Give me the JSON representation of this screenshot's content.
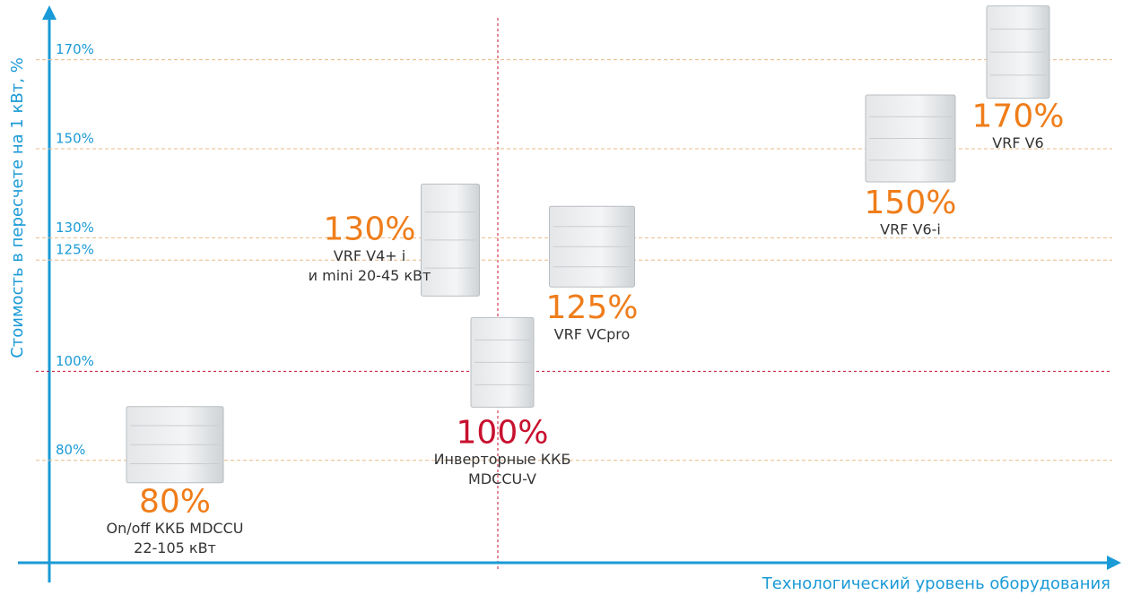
{
  "chart_data": {
    "type": "scatter",
    "y_label": "Стоимость в пересчете на 1 кВт, %",
    "x_label": "Технологический уровень оборудования",
    "ylim": [
      57,
      181
    ],
    "yticks": [
      {
        "value": 80,
        "label": "80%"
      },
      {
        "value": 100,
        "label": "100%"
      },
      {
        "value": 125,
        "label": "125%"
      },
      {
        "value": 130,
        "label": "130%"
      },
      {
        "value": 150,
        "label": "150%"
      },
      {
        "value": 170,
        "label": "170%"
      }
    ],
    "grid": true,
    "grid_color": "#e9b985",
    "reference_line": {
      "value": 100,
      "color": "#c8102e"
    },
    "categories": [
      [
        "On/off ККБ MDCCU",
        "22-105 кВт"
      ],
      [
        "Инверторные ККБ",
        "MDCCU-V"
      ],
      [
        "VRF VCpro"
      ],
      [
        "VRF V4+ i",
        "и mini 20-45 кВт"
      ],
      [
        "VRF V6-i"
      ],
      [
        "VRF V6"
      ]
    ],
    "values": [
      80,
      100,
      125,
      130,
      150,
      170
    ],
    "value_labels": [
      "80%",
      "100%",
      "125%",
      "130%",
      "150%",
      "170%"
    ],
    "colors": [
      "#ef7d1a",
      "#c8102e",
      "#ef7d1a",
      "#ef7d1a",
      "#ef7d1a",
      "#ef7d1a"
    ]
  }
}
